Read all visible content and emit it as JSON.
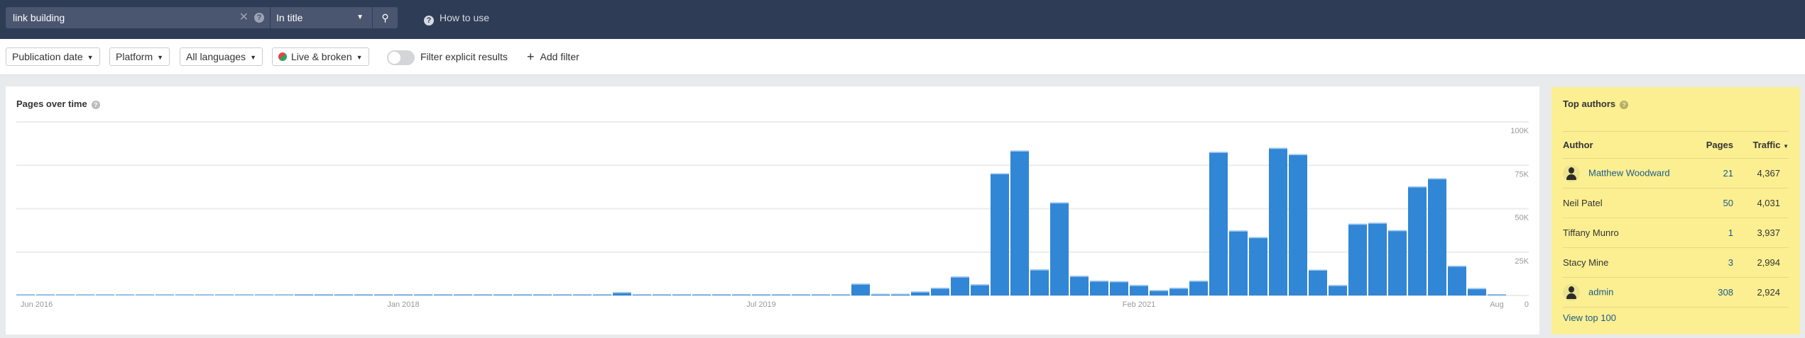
{
  "search": {
    "value": "link building",
    "clear_icon": "close-icon",
    "help_icon": "question-icon",
    "mode": "In title",
    "search_icon": "magnifier-icon"
  },
  "how_to_use": "How to use",
  "filters": {
    "publication_date": "Publication date",
    "platform": "Platform",
    "languages": "All languages",
    "status": "Live & broken",
    "explicit_toggle_label": "Filter explicit results",
    "explicit_toggle_on": false,
    "add_filter": "Add filter"
  },
  "chart_title": "Pages over time",
  "chart_data": {
    "type": "bar",
    "title": "Pages over time",
    "x_start": "2016-06",
    "x_end": "2022-08",
    "interval": "month",
    "x_tick_labels": [
      {
        "month_index": 0,
        "label": "Jun 2016"
      },
      {
        "month_index": 19,
        "label": "Jan 2018"
      },
      {
        "month_index": 37,
        "label": "Jul 2019"
      },
      {
        "month_index": 56,
        "label": "Feb 2021"
      },
      {
        "month_index": 74,
        "label": "Aug"
      }
    ],
    "y_tick_labels": [
      "0",
      "25K",
      "50K",
      "75K",
      "100K"
    ],
    "ylim": [
      0,
      100000
    ],
    "y_axis_side": "right",
    "grid": true,
    "bar_color": "#3186d6",
    "values": [
      300,
      300,
      300,
      300,
      300,
      300,
      300,
      300,
      300,
      300,
      300,
      300,
      300,
      300,
      300,
      500,
      700,
      700,
      500,
      300,
      300,
      700,
      400,
      400,
      400,
      500,
      700,
      700,
      700,
      800,
      1900,
      700,
      300,
      500,
      500,
      700,
      700,
      800,
      700,
      700,
      700,
      700,
      6800,
      1000,
      1000,
      2300,
      4400,
      10900,
      6400,
      70400,
      83500,
      15000,
      53600,
      11300,
      8500,
      8200,
      6000,
      3100,
      4400,
      8500,
      82700,
      37400,
      33600,
      85000,
      81400,
      14900,
      6000,
      41300,
      41900,
      37600,
      62800,
      67500,
      17100,
      4200,
      300
    ]
  },
  "top_authors": {
    "title": "Top authors",
    "columns": {
      "author": "Author",
      "pages": "Pages",
      "traffic": "Traffic"
    },
    "sort_icon": "caret-down-icon",
    "rows": [
      {
        "author": "Matthew Woodward",
        "has_avatar": true,
        "pages": "21",
        "traffic": "4,367"
      },
      {
        "author": "Neil Patel",
        "has_avatar": false,
        "pages": "50",
        "traffic": "4,031"
      },
      {
        "author": "Tiffany Munro",
        "has_avatar": false,
        "pages": "1",
        "traffic": "3,937"
      },
      {
        "author": "Stacy Mine",
        "has_avatar": false,
        "pages": "3",
        "traffic": "2,994"
      },
      {
        "author": "admin",
        "has_avatar": true,
        "pages": "308",
        "traffic": "2,924"
      }
    ],
    "view_more": "View top 100"
  }
}
